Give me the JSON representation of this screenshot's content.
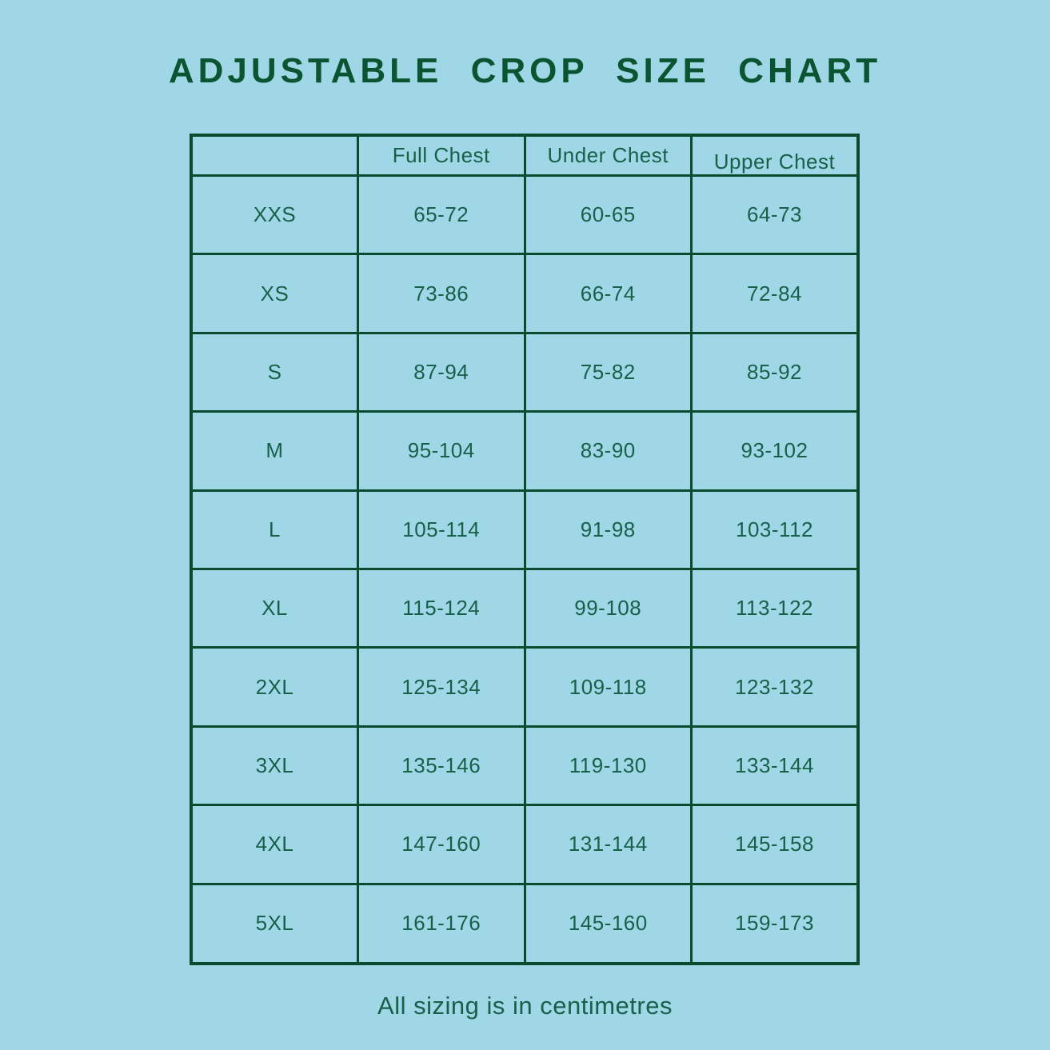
{
  "title": "ADJUSTABLE CROP SIZE CHART",
  "footer_note": "All sizing is in centimetres",
  "colors": {
    "background": "#9FD7E7",
    "border_green": "#0A4A2E",
    "title_green": "#0A5431",
    "text_green": "#17604A"
  },
  "chart_data": {
    "type": "table",
    "title": "ADJUSTABLE CROP SIZE CHART",
    "note": "All sizing is in centimetres",
    "units": "centimetres",
    "headers": [
      "",
      "Full Chest",
      "Under Chest",
      "Upper Chest"
    ],
    "rows": [
      [
        "XXS",
        "65-72",
        "60-65",
        "64-73"
      ],
      [
        "XS",
        "73-86",
        "66-74",
        "72-84"
      ],
      [
        "S",
        "87-94",
        "75-82",
        "85-92"
      ],
      [
        "M",
        "95-104",
        "83-90",
        "93-102"
      ],
      [
        "L",
        "105-114",
        "91-98",
        "103-112"
      ],
      [
        "XL",
        "115-124",
        "99-108",
        "113-122"
      ],
      [
        "2XL",
        "125-134",
        "109-118",
        "123-132"
      ],
      [
        "3XL",
        "135-146",
        "119-130",
        "133-144"
      ],
      [
        "4XL",
        "147-160",
        "131-144",
        "145-158"
      ],
      [
        "5XL",
        "161-176",
        "145-160",
        "159-173"
      ]
    ]
  }
}
